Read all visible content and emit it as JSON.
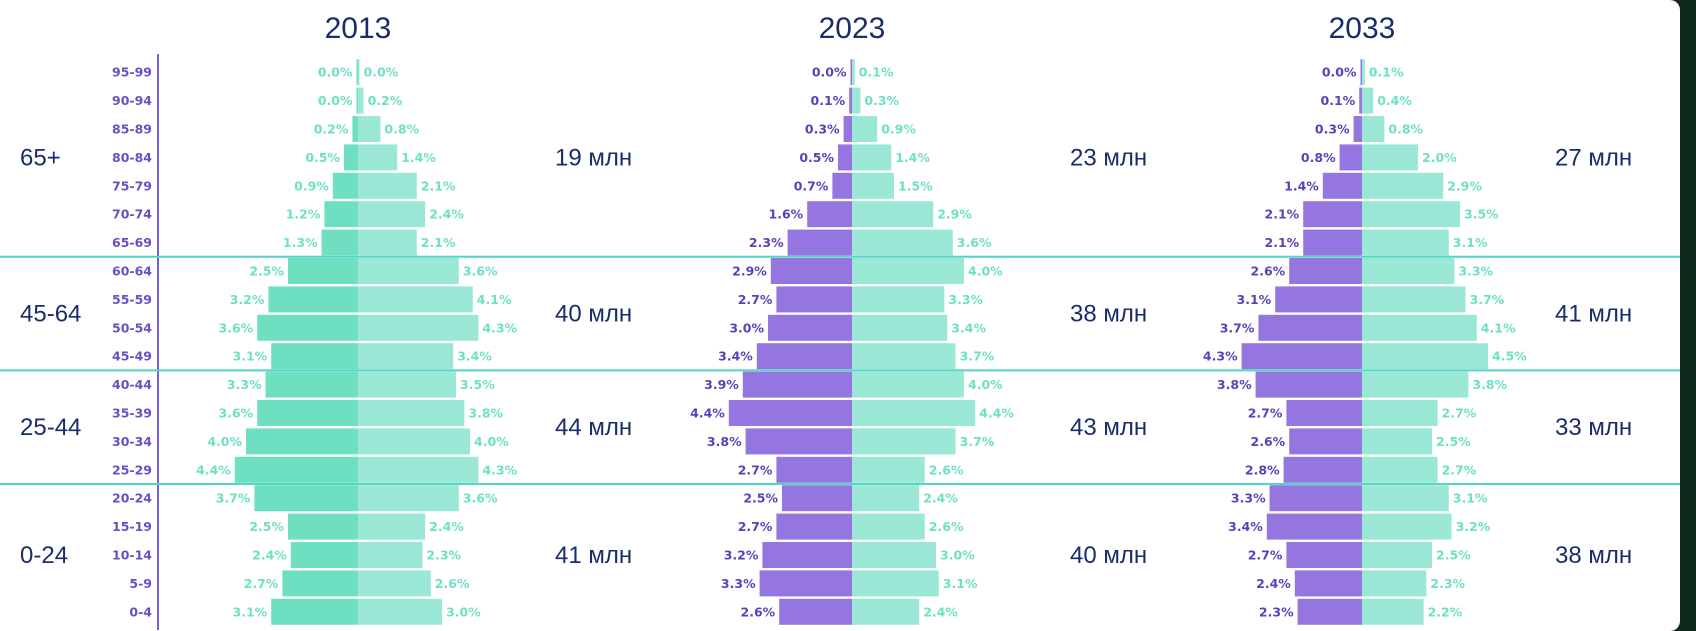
{
  "chart_data": {
    "type": "bar",
    "subtype": "population-pyramid",
    "age_groups": [
      "95-99",
      "90-94",
      "85-89",
      "80-84",
      "75-79",
      "70-74",
      "65-69",
      "60-64",
      "55-59",
      "50-54",
      "45-49",
      "40-44",
      "35-39",
      "30-34",
      "25-29",
      "20-24",
      "15-19",
      "10-14",
      "5-9",
      "0-4"
    ],
    "colors": {
      "left_2013": "#6fdfc2",
      "left": "#9575e0",
      "right": "#9ce8d6",
      "separator": "#4fd6c4",
      "axis": "#7b5cd6",
      "text_dark": "#1a2d6b"
    },
    "groups": [
      {
        "label": "65+",
        "rows": 7
      },
      {
        "label": "45-64",
        "rows": 4
      },
      {
        "label": "25-44",
        "rows": 4
      },
      {
        "label": "0-24",
        "rows": 5
      }
    ],
    "panels": [
      {
        "title": "2013",
        "left": [
          0.0,
          0.0,
          0.2,
          0.5,
          0.9,
          1.2,
          1.3,
          2.5,
          3.2,
          3.6,
          3.1,
          3.3,
          3.6,
          4.0,
          4.4,
          3.7,
          2.5,
          2.4,
          2.7,
          3.1
        ],
        "right": [
          0.0,
          0.2,
          0.8,
          1.4,
          2.1,
          2.4,
          2.1,
          3.6,
          4.1,
          4.3,
          3.4,
          3.5,
          3.8,
          4.0,
          4.3,
          3.6,
          2.4,
          2.3,
          2.6,
          3.0
        ],
        "totals": [
          "19 млн",
          "40 млн",
          "44 млн",
          "41 млн"
        ]
      },
      {
        "title": "2023",
        "left": [
          0.0,
          0.1,
          0.3,
          0.5,
          0.7,
          1.6,
          2.3,
          2.9,
          2.7,
          3.0,
          3.4,
          3.9,
          4.4,
          3.8,
          2.7,
          2.5,
          2.7,
          3.2,
          3.3,
          2.6
        ],
        "right": [
          0.1,
          0.3,
          0.9,
          1.4,
          1.5,
          2.9,
          3.6,
          4.0,
          3.3,
          3.4,
          3.7,
          4.0,
          4.4,
          3.7,
          2.6,
          2.4,
          2.6,
          3.0,
          3.1,
          2.4
        ],
        "totals": [
          "23 млн",
          "38 млн",
          "43 млн",
          "40 млн"
        ]
      },
      {
        "title": "2033",
        "left": [
          0.0,
          0.1,
          0.3,
          0.8,
          1.4,
          2.1,
          2.1,
          2.6,
          3.1,
          3.7,
          4.3,
          3.8,
          2.7,
          2.6,
          2.8,
          3.3,
          3.4,
          2.7,
          2.4,
          2.3
        ],
        "right": [
          0.1,
          0.4,
          0.8,
          2.0,
          2.9,
          3.5,
          3.1,
          3.3,
          3.7,
          4.1,
          4.5,
          3.8,
          2.7,
          2.5,
          2.7,
          3.1,
          3.2,
          2.5,
          2.3,
          2.2
        ],
        "totals": [
          "27 млн",
          "41 млн",
          "33 млн",
          "38 млн"
        ]
      }
    ]
  }
}
